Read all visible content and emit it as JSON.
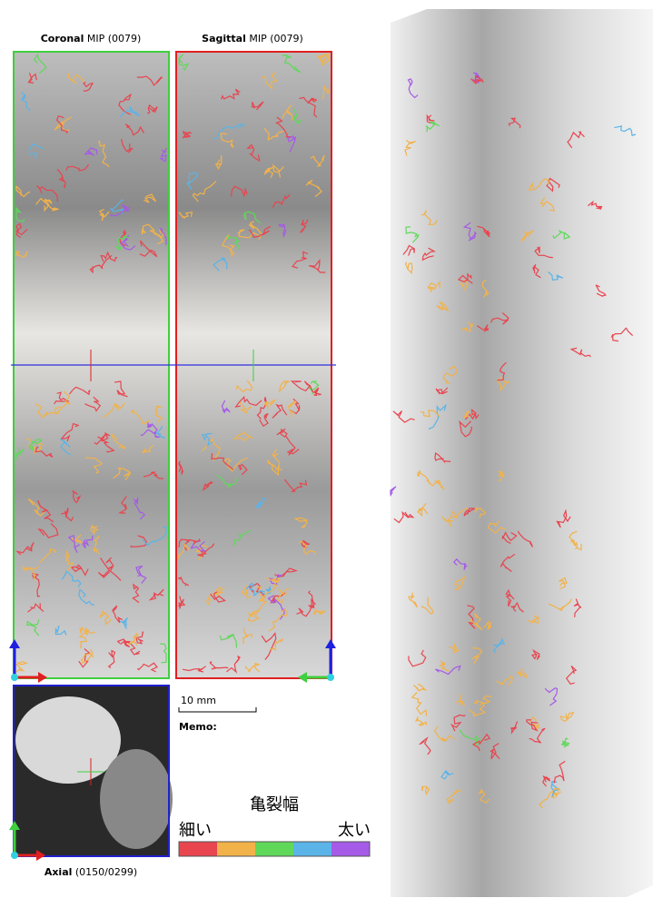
{
  "views": [
    {
      "name": "Coronal",
      "detail": "MIP (0079)"
    },
    {
      "name": "Sagittal",
      "detail": "MIP (0079)"
    },
    {
      "name": "Axial",
      "detail": "(0150/0299)"
    }
  ],
  "scale_bar": "10 mm",
  "memo": "Memo:",
  "legend": {
    "title": "亀裂幅",
    "low": "細い",
    "high": "太い",
    "colors": [
      "#e8454f",
      "#f2b24a",
      "#5fd85a",
      "#5ab4e8",
      "#a55ae8"
    ]
  }
}
